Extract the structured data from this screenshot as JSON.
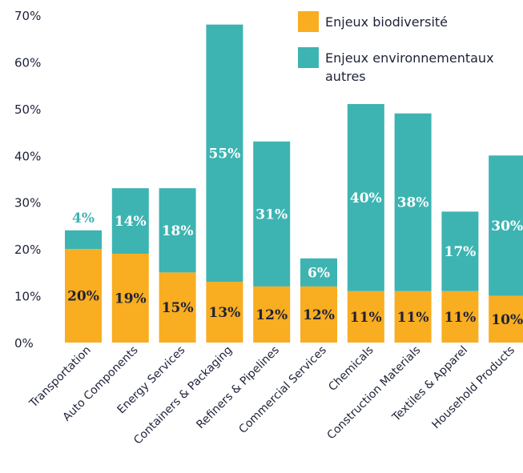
{
  "chart_data": {
    "type": "bar",
    "stacked": true,
    "categories": [
      "Transportation",
      "Auto Components",
      "Energy Services",
      "Containers & Packaging",
      "Refiners & Pipelines",
      "Commercial Services",
      "Chemicals",
      "Construction Materials",
      "Textiles & Apparel",
      "Household Products"
    ],
    "series": [
      {
        "name": "Enjeux biodiversité",
        "color": "#f9ad20",
        "values": [
          20,
          19,
          15,
          13,
          12,
          12,
          11,
          11,
          11,
          10
        ],
        "labels": [
          "20%",
          "19%",
          "15%",
          "13%",
          "12%",
          "12%",
          "11%",
          "11%",
          "11%",
          "10%"
        ]
      },
      {
        "name": "Enjeux environnementaux autres",
        "color": "#3db4b2",
        "values": [
          4,
          14,
          18,
          55,
          31,
          6,
          40,
          38,
          17,
          30
        ],
        "labels": [
          "4%",
          "14%",
          "18%",
          "55%",
          "31%",
          "6%",
          "40%",
          "38%",
          "17%",
          "30%"
        ]
      }
    ],
    "ylim": [
      0,
      70
    ],
    "yticks": [
      "0%",
      "10%",
      "20%",
      "30%",
      "40%",
      "50%",
      "60%",
      "70%"
    ],
    "legend_position": "top-right",
    "grid": false
  },
  "legend": {
    "bio": "Enjeux biodiversité",
    "env_line1": "Enjeux environnementaux",
    "env_line2": "autres"
  }
}
